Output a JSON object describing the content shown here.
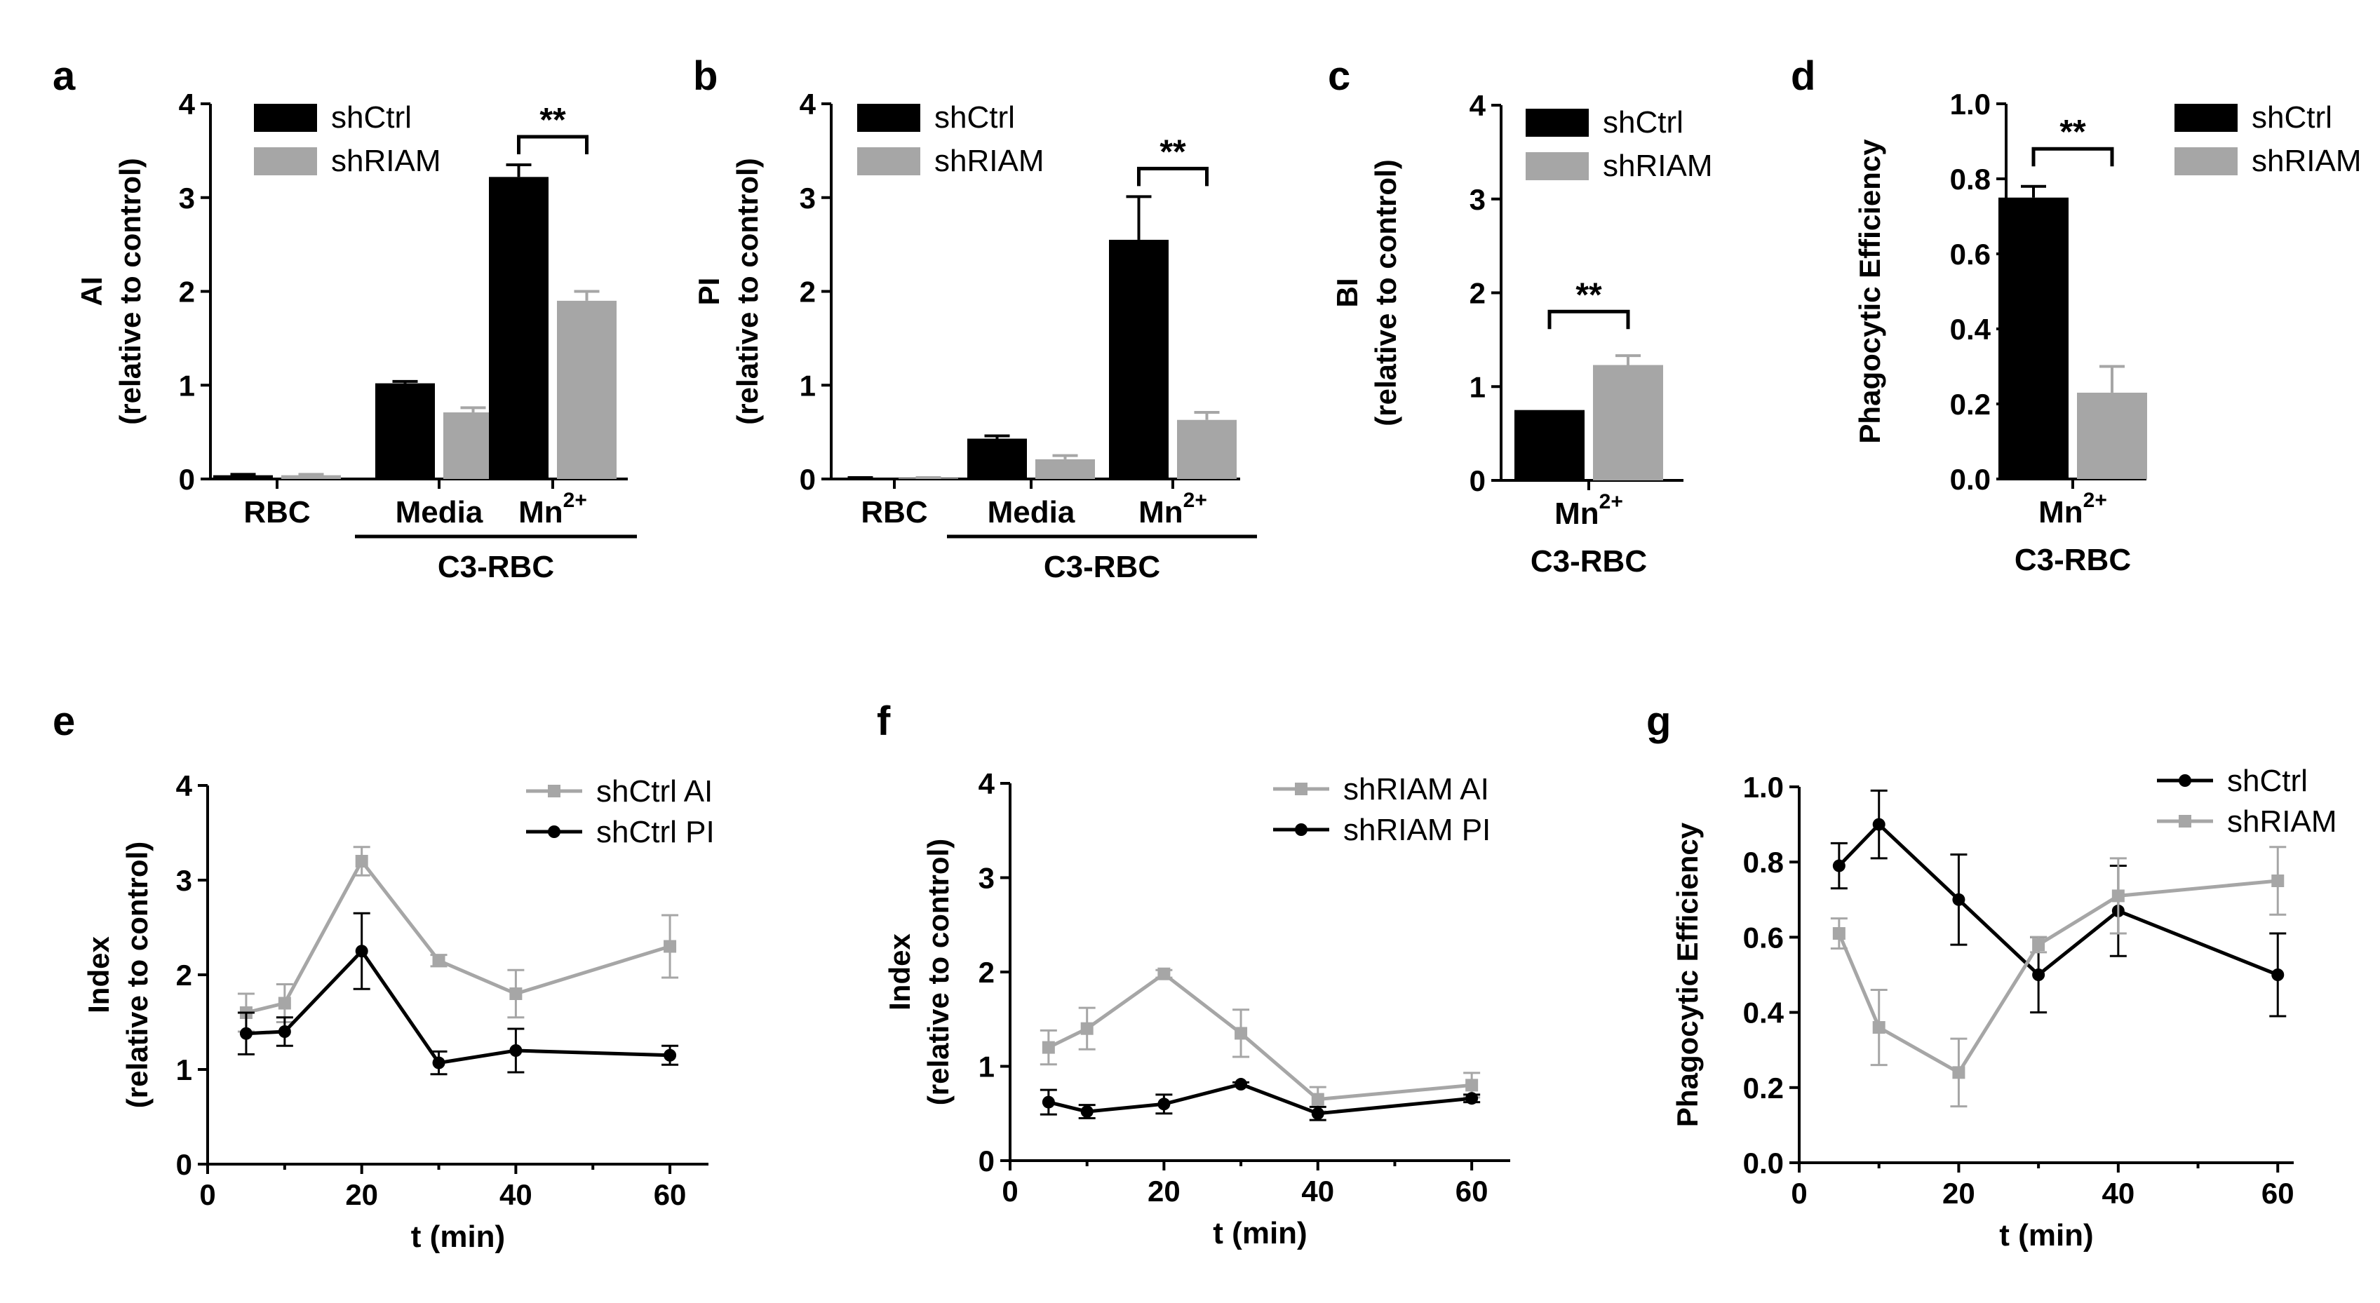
{
  "colors": {
    "shCtrl": "#000000",
    "shRIAM": "#a6a6a6"
  },
  "chart_data": [
    {
      "type": "bar",
      "panel": "a",
      "ylabel_main": "AI",
      "ylabel_sub": "(relative to control)",
      "ylim": [
        0,
        4
      ],
      "yticks": [
        "0",
        "1",
        "2",
        "3",
        "4"
      ],
      "categories": [
        "RBC",
        "Media",
        "Mn"
      ],
      "category_sup": [
        "",
        "",
        "2+"
      ],
      "group_label": "C3-RBC",
      "series": [
        {
          "name": "shCtrl",
          "values": [
            0.04,
            1.02,
            3.22
          ],
          "errors": [
            0.01,
            0.02,
            0.13
          ]
        },
        {
          "name": "shRIAM",
          "values": [
            0.04,
            0.71,
            1.9
          ],
          "errors": [
            0.01,
            0.05,
            0.1
          ]
        }
      ],
      "significance": [
        {
          "category": 2,
          "label": "**"
        }
      ]
    },
    {
      "type": "bar",
      "panel": "b",
      "ylabel_main": "PI",
      "ylabel_sub": "(relative to control)",
      "ylim": [
        0,
        4
      ],
      "yticks": [
        "0",
        "1",
        "2",
        "3",
        "4"
      ],
      "categories": [
        "RBC",
        "Media",
        "Mn"
      ],
      "category_sup": [
        "",
        "",
        "2+"
      ],
      "group_label": "C3-RBC",
      "series": [
        {
          "name": "shCtrl",
          "values": [
            0.01,
            0.43,
            2.55
          ],
          "errors": [
            0.005,
            0.03,
            0.46
          ]
        },
        {
          "name": "shRIAM",
          "values": [
            0.01,
            0.21,
            0.63
          ],
          "errors": [
            0.005,
            0.04,
            0.08
          ]
        }
      ],
      "significance": [
        {
          "category": 2,
          "label": "**"
        }
      ]
    },
    {
      "type": "bar",
      "panel": "c",
      "ylabel_main": "BI",
      "ylabel_sub": "(relative to control)",
      "ylim": [
        0,
        4
      ],
      "yticks": [
        "0",
        "1",
        "2",
        "3",
        "4"
      ],
      "categories": [
        "Mn"
      ],
      "category_sup": [
        "2+"
      ],
      "group_label": "C3-RBC",
      "series": [
        {
          "name": "shCtrl",
          "values": [
            0.75
          ],
          "errors": [
            0.0
          ]
        },
        {
          "name": "shRIAM",
          "values": [
            1.23
          ],
          "errors": [
            0.1
          ]
        }
      ],
      "significance": [
        {
          "category": 0,
          "label": "**"
        }
      ]
    },
    {
      "type": "bar",
      "panel": "d",
      "ylabel_main": "Phagocytic Efficiency",
      "ylabel_sub": "",
      "ylim": [
        0,
        1
      ],
      "yticks": [
        "0.0",
        "0.2",
        "0.4",
        "0.6",
        "0.8",
        "1.0"
      ],
      "categories": [
        "Mn"
      ],
      "category_sup": [
        "2+"
      ],
      "group_label": "C3-RBC",
      "series": [
        {
          "name": "shCtrl",
          "values": [
            0.75
          ],
          "errors": [
            0.03
          ]
        },
        {
          "name": "shRIAM",
          "values": [
            0.23
          ],
          "errors": [
            0.07
          ]
        }
      ],
      "significance": [
        {
          "category": 0,
          "label": "**"
        }
      ]
    },
    {
      "type": "line",
      "panel": "e",
      "ylabel_main": "Index",
      "ylabel_sub": "(relative to control)",
      "xlabel": "t (min)",
      "xlim": [
        0,
        65
      ],
      "xticks": [
        "0",
        "20",
        "40",
        "60"
      ],
      "ylim": [
        0,
        4
      ],
      "yticks": [
        "0",
        "1",
        "2",
        "3",
        "4"
      ],
      "x": [
        5,
        10,
        20,
        30,
        40,
        60
      ],
      "series": [
        {
          "name": "shCtrl AI",
          "marker": "square",
          "values": [
            1.6,
            1.7,
            3.2,
            2.15,
            1.8,
            2.3
          ],
          "errors": [
            0.2,
            0.2,
            0.15,
            0.06,
            0.25,
            0.33
          ]
        },
        {
          "name": "shCtrl PI",
          "marker": "circle",
          "values": [
            1.38,
            1.4,
            2.25,
            1.07,
            1.2,
            1.15
          ],
          "errors": [
            0.22,
            0.15,
            0.4,
            0.12,
            0.23,
            0.1
          ]
        }
      ]
    },
    {
      "type": "line",
      "panel": "f",
      "ylabel_main": "Index",
      "ylabel_sub": "(relative to control)",
      "xlabel": "t (min)",
      "xlim": [
        0,
        65
      ],
      "xticks": [
        "0",
        "20",
        "40",
        "60"
      ],
      "ylim": [
        0,
        4
      ],
      "yticks": [
        "0",
        "1",
        "2",
        "3",
        "4"
      ],
      "x": [
        5,
        10,
        20,
        30,
        40,
        60
      ],
      "series": [
        {
          "name": "shRIAM AI",
          "marker": "square",
          "values": [
            1.2,
            1.4,
            1.98,
            1.35,
            0.65,
            0.8
          ],
          "errors": [
            0.18,
            0.22,
            0.04,
            0.25,
            0.13,
            0.13
          ]
        },
        {
          "name": "shRIAM PI",
          "marker": "circle",
          "values": [
            0.62,
            0.52,
            0.6,
            0.81,
            0.5,
            0.66
          ],
          "errors": [
            0.13,
            0.07,
            0.1,
            0.02,
            0.07,
            0.04
          ]
        }
      ]
    },
    {
      "type": "line",
      "panel": "g",
      "ylabel_main": "Phagocytic Efficiency",
      "ylabel_sub": "",
      "xlabel": "t (min)",
      "xlim": [
        0,
        62
      ],
      "xticks": [
        "0",
        "20",
        "40",
        "60"
      ],
      "ylim": [
        0,
        1
      ],
      "yticks": [
        "0.0",
        "0.2",
        "0.4",
        "0.6",
        "0.8",
        "1.0"
      ],
      "x": [
        5,
        10,
        20,
        30,
        40,
        60
      ],
      "series": [
        {
          "name": "shCtrl",
          "marker": "circle",
          "values": [
            0.79,
            0.9,
            0.7,
            0.5,
            0.67,
            0.5
          ],
          "errors": [
            0.06,
            0.09,
            0.12,
            0.1,
            0.12,
            0.11
          ]
        },
        {
          "name": "shRIAM",
          "marker": "square",
          "values": [
            0.61,
            0.36,
            0.24,
            0.58,
            0.71,
            0.75
          ],
          "errors": [
            0.04,
            0.1,
            0.09,
            0.02,
            0.1,
            0.09
          ]
        }
      ]
    }
  ]
}
